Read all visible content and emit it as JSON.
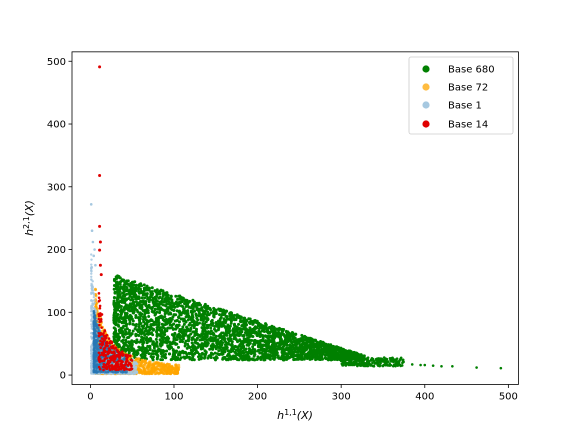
{
  "chart_data": {
    "type": "scatter",
    "title": "",
    "xlabel_main": "h",
    "xlabel_sup": "1,1",
    "xlabel_tail": "(X)",
    "ylabel_main": "h",
    "ylabel_sup": "2,1",
    "ylabel_tail": "(X)",
    "xlim": [
      -22,
      512
    ],
    "ylim": [
      -15,
      515
    ],
    "xticks": [
      "0",
      "100",
      "200",
      "300",
      "400",
      "500"
    ],
    "xtick_values": [
      0,
      100,
      200,
      300,
      400,
      500
    ],
    "yticks": [
      "0",
      "100",
      "200",
      "300",
      "400",
      "500"
    ],
    "ytick_values": [
      0,
      100,
      200,
      300,
      400,
      500
    ],
    "grid": false,
    "legend_position": "top-right",
    "series": [
      {
        "name": "Base 680",
        "color": "#008000",
        "shape": "wedge region from h11≈28 to h11≈330, upper bound descending from 160 to 25, lower bound ≈25; sparse tail to h11≈491",
        "points": [
          [
            28,
            160
          ],
          [
            50,
            150
          ],
          [
            100,
            120
          ],
          [
            150,
            95
          ],
          [
            200,
            70
          ],
          [
            250,
            50
          ],
          [
            300,
            35
          ],
          [
            330,
            28
          ],
          [
            360,
            20
          ],
          [
            400,
            16
          ],
          [
            420,
            14
          ],
          [
            433,
            14
          ],
          [
            462,
            12
          ],
          [
            491,
            11
          ],
          [
            30,
            25
          ],
          [
            100,
            25
          ],
          [
            200,
            25
          ],
          [
            300,
            25
          ]
        ]
      },
      {
        "name": "Base 72",
        "color": "#FFA500",
        "points": [
          [
            5,
            150
          ],
          [
            8,
            80
          ],
          [
            10,
            30
          ],
          [
            12,
            15
          ],
          [
            20,
            40
          ],
          [
            30,
            25
          ],
          [
            40,
            15
          ],
          [
            60,
            10
          ],
          [
            80,
            7
          ],
          [
            100,
            5
          ],
          [
            110,
            4
          ]
        ]
      },
      {
        "name": "Base 1",
        "color": "#A6C8E0",
        "points": [
          [
            1,
            272
          ],
          [
            3,
            230
          ],
          [
            5,
            200
          ],
          [
            2,
            160
          ],
          [
            4,
            120
          ],
          [
            6,
            100
          ],
          [
            8,
            80
          ],
          [
            10,
            60
          ],
          [
            14,
            50
          ],
          [
            20,
            35
          ],
          [
            30,
            20
          ],
          [
            40,
            12
          ],
          [
            50,
            8
          ]
        ]
      },
      {
        "name": "Base 14",
        "color": "#E00000",
        "points": [
          [
            11,
            491
          ],
          [
            11,
            318
          ],
          [
            11,
            237
          ],
          [
            11,
            212
          ],
          [
            11,
            199
          ],
          [
            12,
            160
          ],
          [
            13,
            120
          ],
          [
            14,
            90
          ],
          [
            14,
            60
          ],
          [
            16,
            40
          ],
          [
            20,
            30
          ],
          [
            28,
            25
          ],
          [
            34,
            22
          ],
          [
            40,
            15
          ],
          [
            48,
            12
          ]
        ]
      }
    ]
  }
}
